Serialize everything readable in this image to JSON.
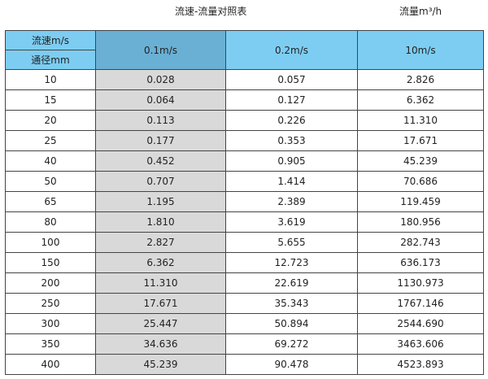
{
  "title": "流速-流量对照表",
  "unit_label": "流量m³/h",
  "header": {
    "velocity_label": "流速m/s",
    "diameter_label": "通径mm",
    "columns": [
      "0.1m/s",
      "0.2m/s",
      "10m/s"
    ]
  },
  "colors": {
    "header": "#7dcdf2",
    "header_selected": "#6ab0d5",
    "highlight_column": "#d9d9d9"
  },
  "rows": [
    [
      "10",
      "0.028",
      "0.057",
      "2.826"
    ],
    [
      "15",
      "0.064",
      "0.127",
      "6.362"
    ],
    [
      "20",
      "0.113",
      "0.226",
      "11.310"
    ],
    [
      "25",
      "0.177",
      "0.353",
      "17.671"
    ],
    [
      "40",
      "0.452",
      "0.905",
      "45.239"
    ],
    [
      "50",
      "0.707",
      "1.414",
      "70.686"
    ],
    [
      "65",
      "1.195",
      "2.389",
      "119.459"
    ],
    [
      "80",
      "1.810",
      "3.619",
      "180.956"
    ],
    [
      "100",
      "2.827",
      "5.655",
      "282.743"
    ],
    [
      "150",
      "6.362",
      "12.723",
      "636.173"
    ],
    [
      "200",
      "11.310",
      "22.619",
      "1130.973"
    ],
    [
      "250",
      "17.671",
      "35.343",
      "1767.146"
    ],
    [
      "300",
      "25.447",
      "50.894",
      "2544.690"
    ],
    [
      "350",
      "34.636",
      "69.272",
      "3463.606"
    ],
    [
      "400",
      "45.239",
      "90.478",
      "4523.893"
    ]
  ]
}
